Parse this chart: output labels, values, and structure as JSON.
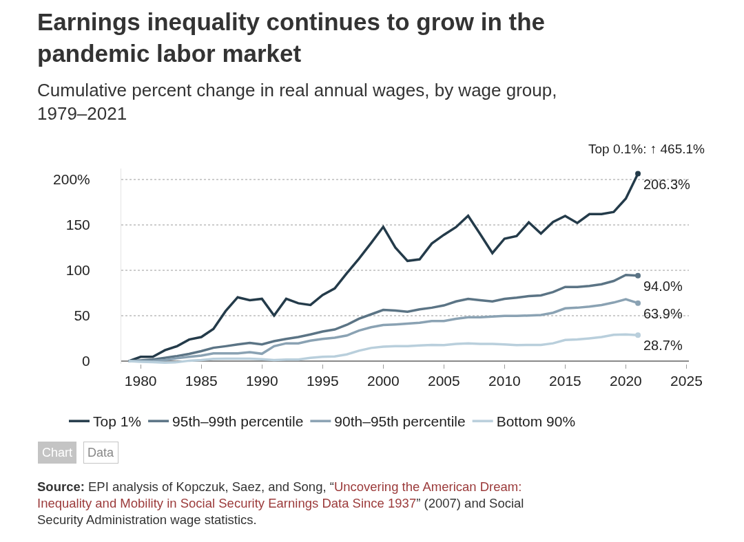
{
  "chart_data": {
    "type": "line",
    "title": "Earnings inequality continues to grow in the pandemic labor market",
    "subtitle": "Cumulative percent change in real annual wages, by wage group, 1979–2021",
    "x": [
      1979,
      1980,
      1981,
      1982,
      1983,
      1984,
      1985,
      1986,
      1987,
      1988,
      1989,
      1990,
      1991,
      1992,
      1993,
      1994,
      1995,
      1996,
      1997,
      1998,
      1999,
      2000,
      2001,
      2002,
      2003,
      2004,
      2005,
      2006,
      2007,
      2008,
      2009,
      2010,
      2011,
      2012,
      2013,
      2014,
      2015,
      2016,
      2017,
      2018,
      2019,
      2020,
      2021
    ],
    "series": [
      {
        "name": "Top 1%",
        "color": "#243b4a",
        "values": [
          0,
          4.7,
          4.7,
          12,
          16.4,
          23.8,
          26.5,
          35.5,
          55,
          70.3,
          67,
          68.6,
          50.2,
          68.6,
          63.7,
          61.8,
          72.8,
          80,
          96.8,
          112.7,
          130,
          147.8,
          125,
          110.3,
          112,
          129.4,
          139,
          147.5,
          160,
          139.7,
          118.9,
          134.8,
          137.7,
          152.7,
          140.4,
          153.2,
          159.8,
          152,
          161.8,
          161.8,
          164.2,
          178.9,
          206.3
        ]
      },
      {
        "name": "95th–99th percentile",
        "color": "#5b7485",
        "values": [
          0,
          0.7,
          1.7,
          3.7,
          5.6,
          8,
          11,
          14.7,
          16.4,
          18.4,
          20,
          18.4,
          22,
          24.5,
          26.5,
          29.4,
          32.6,
          34.8,
          40,
          46.6,
          51.5,
          56.4,
          55.6,
          54.4,
          57,
          58.8,
          61.3,
          65.7,
          68.6,
          67,
          65.7,
          68.6,
          69.9,
          71.6,
          72.3,
          76,
          81.6,
          81.6,
          82.8,
          84.6,
          88.2,
          94.9,
          94.0
        ]
      },
      {
        "name": "90th–95th percentile",
        "color": "#8aa2b3",
        "values": [
          0,
          0,
          0.2,
          1.2,
          3.2,
          4.7,
          6.1,
          8.6,
          8.6,
          8.6,
          9.8,
          8.1,
          16.4,
          19.6,
          19.6,
          22.5,
          24.5,
          25.7,
          28.2,
          33.6,
          37.3,
          39.7,
          40.4,
          41.2,
          42.2,
          44.1,
          44.1,
          46.6,
          48.3,
          48.3,
          49,
          49.8,
          49.8,
          50.2,
          50.7,
          53.2,
          58.1,
          58.8,
          60,
          61.8,
          64.5,
          68.1,
          63.9
        ]
      },
      {
        "name": "Bottom 90%",
        "color": "#b9cfdc",
        "values": [
          0,
          -0.7,
          -1.2,
          -1.7,
          -1.2,
          0.5,
          1.2,
          2.5,
          2.7,
          2.7,
          2.7,
          2.2,
          1.2,
          1.7,
          1.7,
          3.7,
          4.7,
          5.1,
          7.4,
          11.5,
          14.5,
          15.9,
          16.4,
          16.4,
          17.2,
          17.9,
          17.6,
          18.9,
          19.6,
          18.9,
          18.9,
          18.4,
          17.6,
          17.9,
          17.9,
          19.6,
          23.3,
          23.8,
          25,
          26.5,
          28.9,
          29.4,
          28.7
        ]
      }
    ],
    "xlim": [
      1978.4,
      2025.2
    ],
    "xticks": [
      1980,
      1985,
      1990,
      1995,
      2000,
      2005,
      2010,
      2015,
      2020,
      2025
    ],
    "ylim": [
      -3,
      212
    ],
    "yticks": [
      0,
      50,
      100,
      150,
      {
        "value": 200,
        "label": "200%"
      }
    ],
    "grid": "y",
    "legend": "bottom",
    "line_style": "solid",
    "annotations": [
      "Top 0.1%: ↑ 465.1%",
      "206.3%",
      "94.0%",
      "63.9%",
      "28.7%",
      "Chart",
      "Data",
      "Source: EPI analysis of Kopczuk, Saez, and Song, “Uncovering the American Dream: Inequality and Mobility in Social Security Earnings Data Since 1937” (2007) and Social Security Administration wage statistics."
    ]
  }
}
